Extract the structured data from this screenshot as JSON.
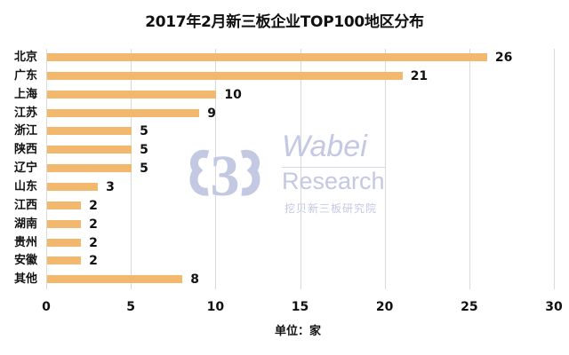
{
  "chart_data": {
    "type": "bar",
    "orientation": "horizontal",
    "title": "2017年2月新三板企业TOP100地区分布",
    "xlabel": "单位：家",
    "ylabel": "",
    "categories": [
      "北京",
      "广东",
      "上海",
      "江苏",
      "浙江",
      "陕西",
      "辽宁",
      "山东",
      "江西",
      "湖南",
      "贵州",
      "安徽",
      "其他"
    ],
    "values": [
      26,
      21,
      10,
      9,
      5,
      5,
      5,
      3,
      2,
      2,
      2,
      2,
      8
    ],
    "xlim": [
      0,
      30
    ],
    "xticks": [
      "0",
      "5",
      "10",
      "15",
      "20",
      "25",
      "30"
    ],
    "grid": "vertical",
    "legend": "none",
    "bar_color": "#f2b96e",
    "data_labels": true
  },
  "watermark": {
    "brand": "Wabei",
    "sub": "Research",
    "cn": "挖贝新三板研究院",
    "color": "#c3c8e3"
  }
}
